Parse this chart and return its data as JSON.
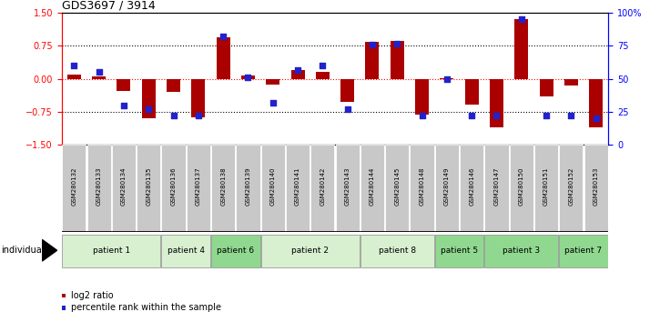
{
  "title": "GDS3697 / 3914",
  "samples": [
    "GSM280132",
    "GSM280133",
    "GSM280134",
    "GSM280135",
    "GSM280136",
    "GSM280137",
    "GSM280138",
    "GSM280139",
    "GSM280140",
    "GSM280141",
    "GSM280142",
    "GSM280143",
    "GSM280144",
    "GSM280145",
    "GSM280148",
    "GSM280149",
    "GSM280146",
    "GSM280147",
    "GSM280150",
    "GSM280151",
    "GSM280152",
    "GSM280153"
  ],
  "log2_ratio": [
    0.1,
    0.05,
    -0.27,
    -0.9,
    -0.3,
    -0.88,
    0.95,
    0.07,
    -0.12,
    0.2,
    0.15,
    -0.52,
    0.85,
    0.87,
    -0.82,
    0.02,
    -0.58,
    -1.1,
    1.35,
    -0.4,
    -0.15,
    -1.1
  ],
  "percentile": [
    60,
    55,
    30,
    27,
    22,
    22,
    82,
    51,
    32,
    57,
    60,
    27,
    76,
    77,
    22,
    50,
    22,
    22,
    95,
    22,
    22,
    20
  ],
  "patients": [
    {
      "label": "patient 1",
      "start": 0,
      "end": 4,
      "color": "#d8f0d0"
    },
    {
      "label": "patient 4",
      "start": 4,
      "end": 6,
      "color": "#d8f0d0"
    },
    {
      "label": "patient 6",
      "start": 6,
      "end": 8,
      "color": "#90d890"
    },
    {
      "label": "patient 2",
      "start": 8,
      "end": 12,
      "color": "#d8f0d0"
    },
    {
      "label": "patient 8",
      "start": 12,
      "end": 15,
      "color": "#d8f0d0"
    },
    {
      "label": "patient 5",
      "start": 15,
      "end": 17,
      "color": "#90d890"
    },
    {
      "label": "patient 3",
      "start": 17,
      "end": 20,
      "color": "#90d890"
    },
    {
      "label": "patient 7",
      "start": 20,
      "end": 22,
      "color": "#90d890"
    }
  ],
  "bar_color": "#aa0000",
  "dot_color": "#2222cc",
  "ylim": [
    -1.5,
    1.5
  ],
  "yticks_left": [
    -1.5,
    -0.75,
    0,
    0.75,
    1.5
  ],
  "yticks_right": [
    0,
    25,
    50,
    75,
    100
  ],
  "hlines_dotted": [
    -0.75,
    0.75
  ],
  "bar_width": 0.55
}
